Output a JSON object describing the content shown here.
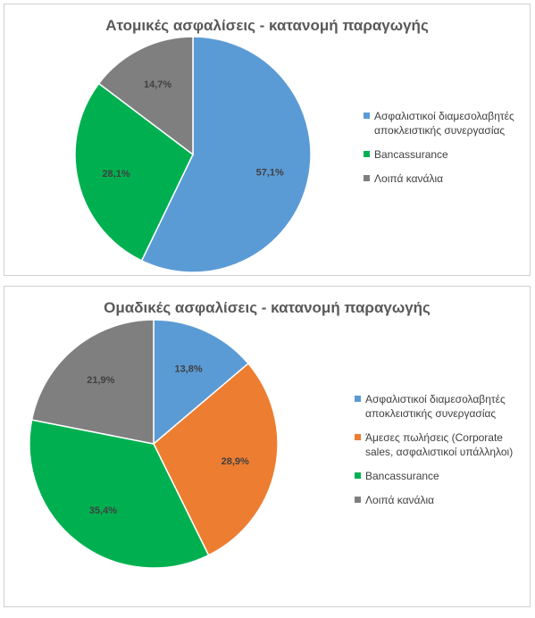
{
  "chart_data": [
    {
      "type": "pie",
      "title": "Ατομικές ασφαλίσεις - κατανομή παραγωγής",
      "legend_position": "right",
      "slices": [
        {
          "label": "Ασφαλιστικοί διαμεσολαβητές αποκλειστικής συνεργασίας",
          "value": 57.1,
          "display": "57,1%",
          "color": "#5B9BD5"
        },
        {
          "label": "Bancassurance",
          "value": 28.1,
          "display": "28,1%",
          "color": "#00B050"
        },
        {
          "label": "Λοιπά κανάλια",
          "value": 14.7,
          "display": "14,7%",
          "color": "#7F7F7F"
        }
      ]
    },
    {
      "type": "pie",
      "title": "Ομαδικές ασφαλίσεις - κατανομή παραγωγής",
      "legend_position": "right",
      "slices": [
        {
          "label": "Ασφαλιστικοί διαμεσολαβητές αποκλειστικής συνεργασίας",
          "value": 13.8,
          "display": "13,8%",
          "color": "#5B9BD5"
        },
        {
          "label": "Άμεσες πωλήσεις (Corporate sales, ασφαλιστικοί υπάλληλοι)",
          "value": 28.9,
          "display": "28,9%",
          "color": "#ED7D31"
        },
        {
          "label": "Bancassurance",
          "value": 35.4,
          "display": "35,4%",
          "color": "#00B050"
        },
        {
          "label": "Λοιπά κανάλια",
          "value": 21.9,
          "display": "21,9%",
          "color": "#7F7F7F"
        }
      ]
    }
  ]
}
